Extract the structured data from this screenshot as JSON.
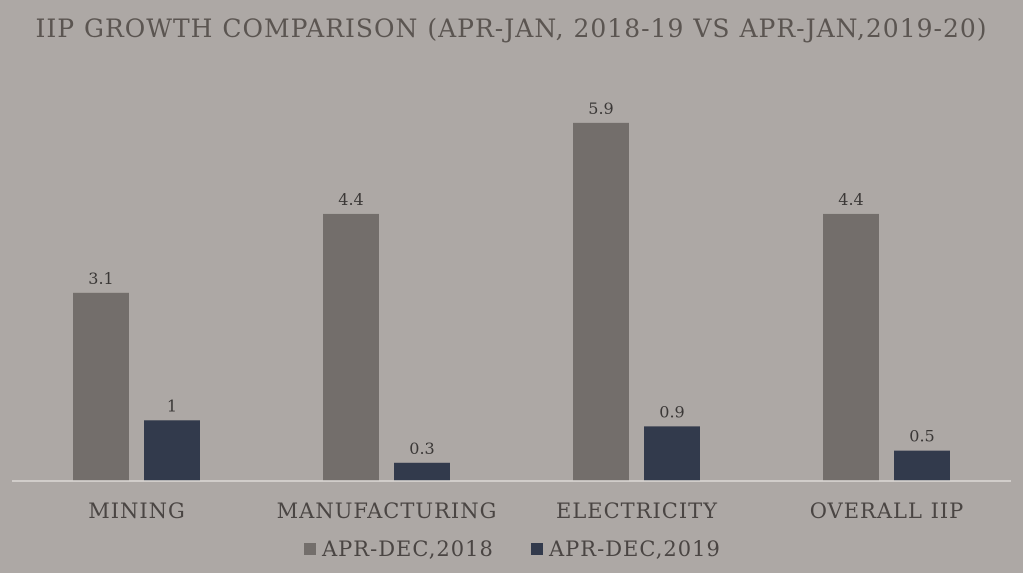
{
  "chart_data": {
    "type": "bar",
    "title": "IIP GROWTH COMPARISON (APR-JAN, 2018-19 VS APR-JAN,2019-20)",
    "categories": [
      "MINING",
      "MANUFACTURING",
      "ELECTRICITY",
      "OVERALL IIP"
    ],
    "series": [
      {
        "name": "APR-DEC,2018",
        "values": [
          3.1,
          4.4,
          5.9,
          4.4
        ],
        "color": "#736e6b"
      },
      {
        "name": "APR-DEC,2019",
        "values": [
          1,
          0.3,
          0.9,
          0.5
        ],
        "color": "#323a4c"
      }
    ],
    "value_labels": [
      [
        "3.1",
        "4.4",
        "5.9",
        "4.4"
      ],
      [
        "1",
        "0.3",
        "0.9",
        "0.5"
      ]
    ],
    "xlabel": "",
    "ylabel": "",
    "ylim": [
      0,
      6
    ],
    "grid": false,
    "legend": "bottom-center"
  }
}
